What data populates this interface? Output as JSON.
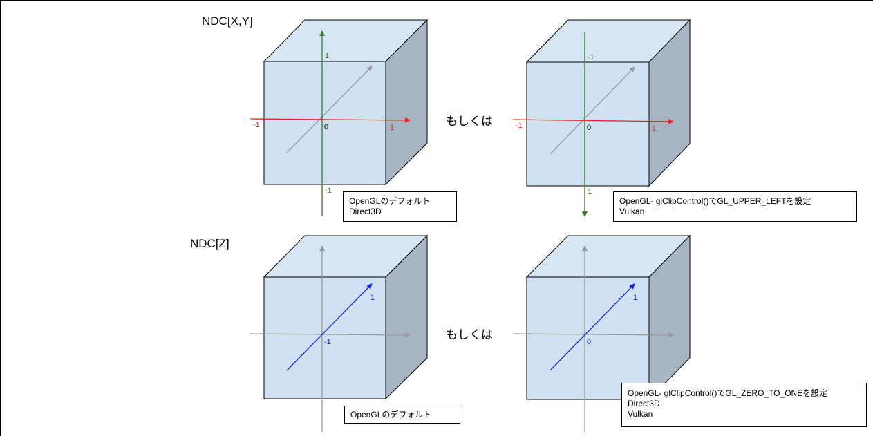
{
  "sections": {
    "xy_title": "NDC[X,Y]",
    "z_title": "NDC[Z]"
  },
  "or_label_top": "もしくは",
  "or_label_bottom": "もしくは",
  "cube_tl": {
    "tick_y_pos": "1",
    "tick_y_neg": "-1",
    "tick_x_neg": "-1",
    "tick_x_pos": "1",
    "origin": "0",
    "note_lines": [
      "OpenGLのデフォルト",
      "Direct3D"
    ]
  },
  "cube_tr": {
    "tick_y_top": "-1",
    "tick_y_bottom": "1",
    "tick_x_neg": "-1",
    "tick_x_pos": "1",
    "origin": "0",
    "note_lines": [
      "OpenGL- glClipControl()でGL_UPPER_LEFTを設定",
      "Vulkan"
    ]
  },
  "cube_bl": {
    "tick_z_pos": "1",
    "origin": "-1",
    "note_lines": [
      "OpenGLのデフォルト"
    ]
  },
  "cube_br": {
    "tick_z_pos": "1",
    "origin": "0",
    "note_lines": [
      "OpenGL- glClipControl()でGL_ZERO_TO_ONEを設定",
      "Direct3D",
      "Vulkan"
    ]
  },
  "colors": {
    "front_face": "#cfe1f3",
    "top_face": "#d6e6f5",
    "side_face": "#a6b4c3",
    "x_axis": "#e8221e",
    "y_axis": "#3a7d22",
    "z_axis": "#1020e0",
    "gray_axis": "#999999"
  }
}
